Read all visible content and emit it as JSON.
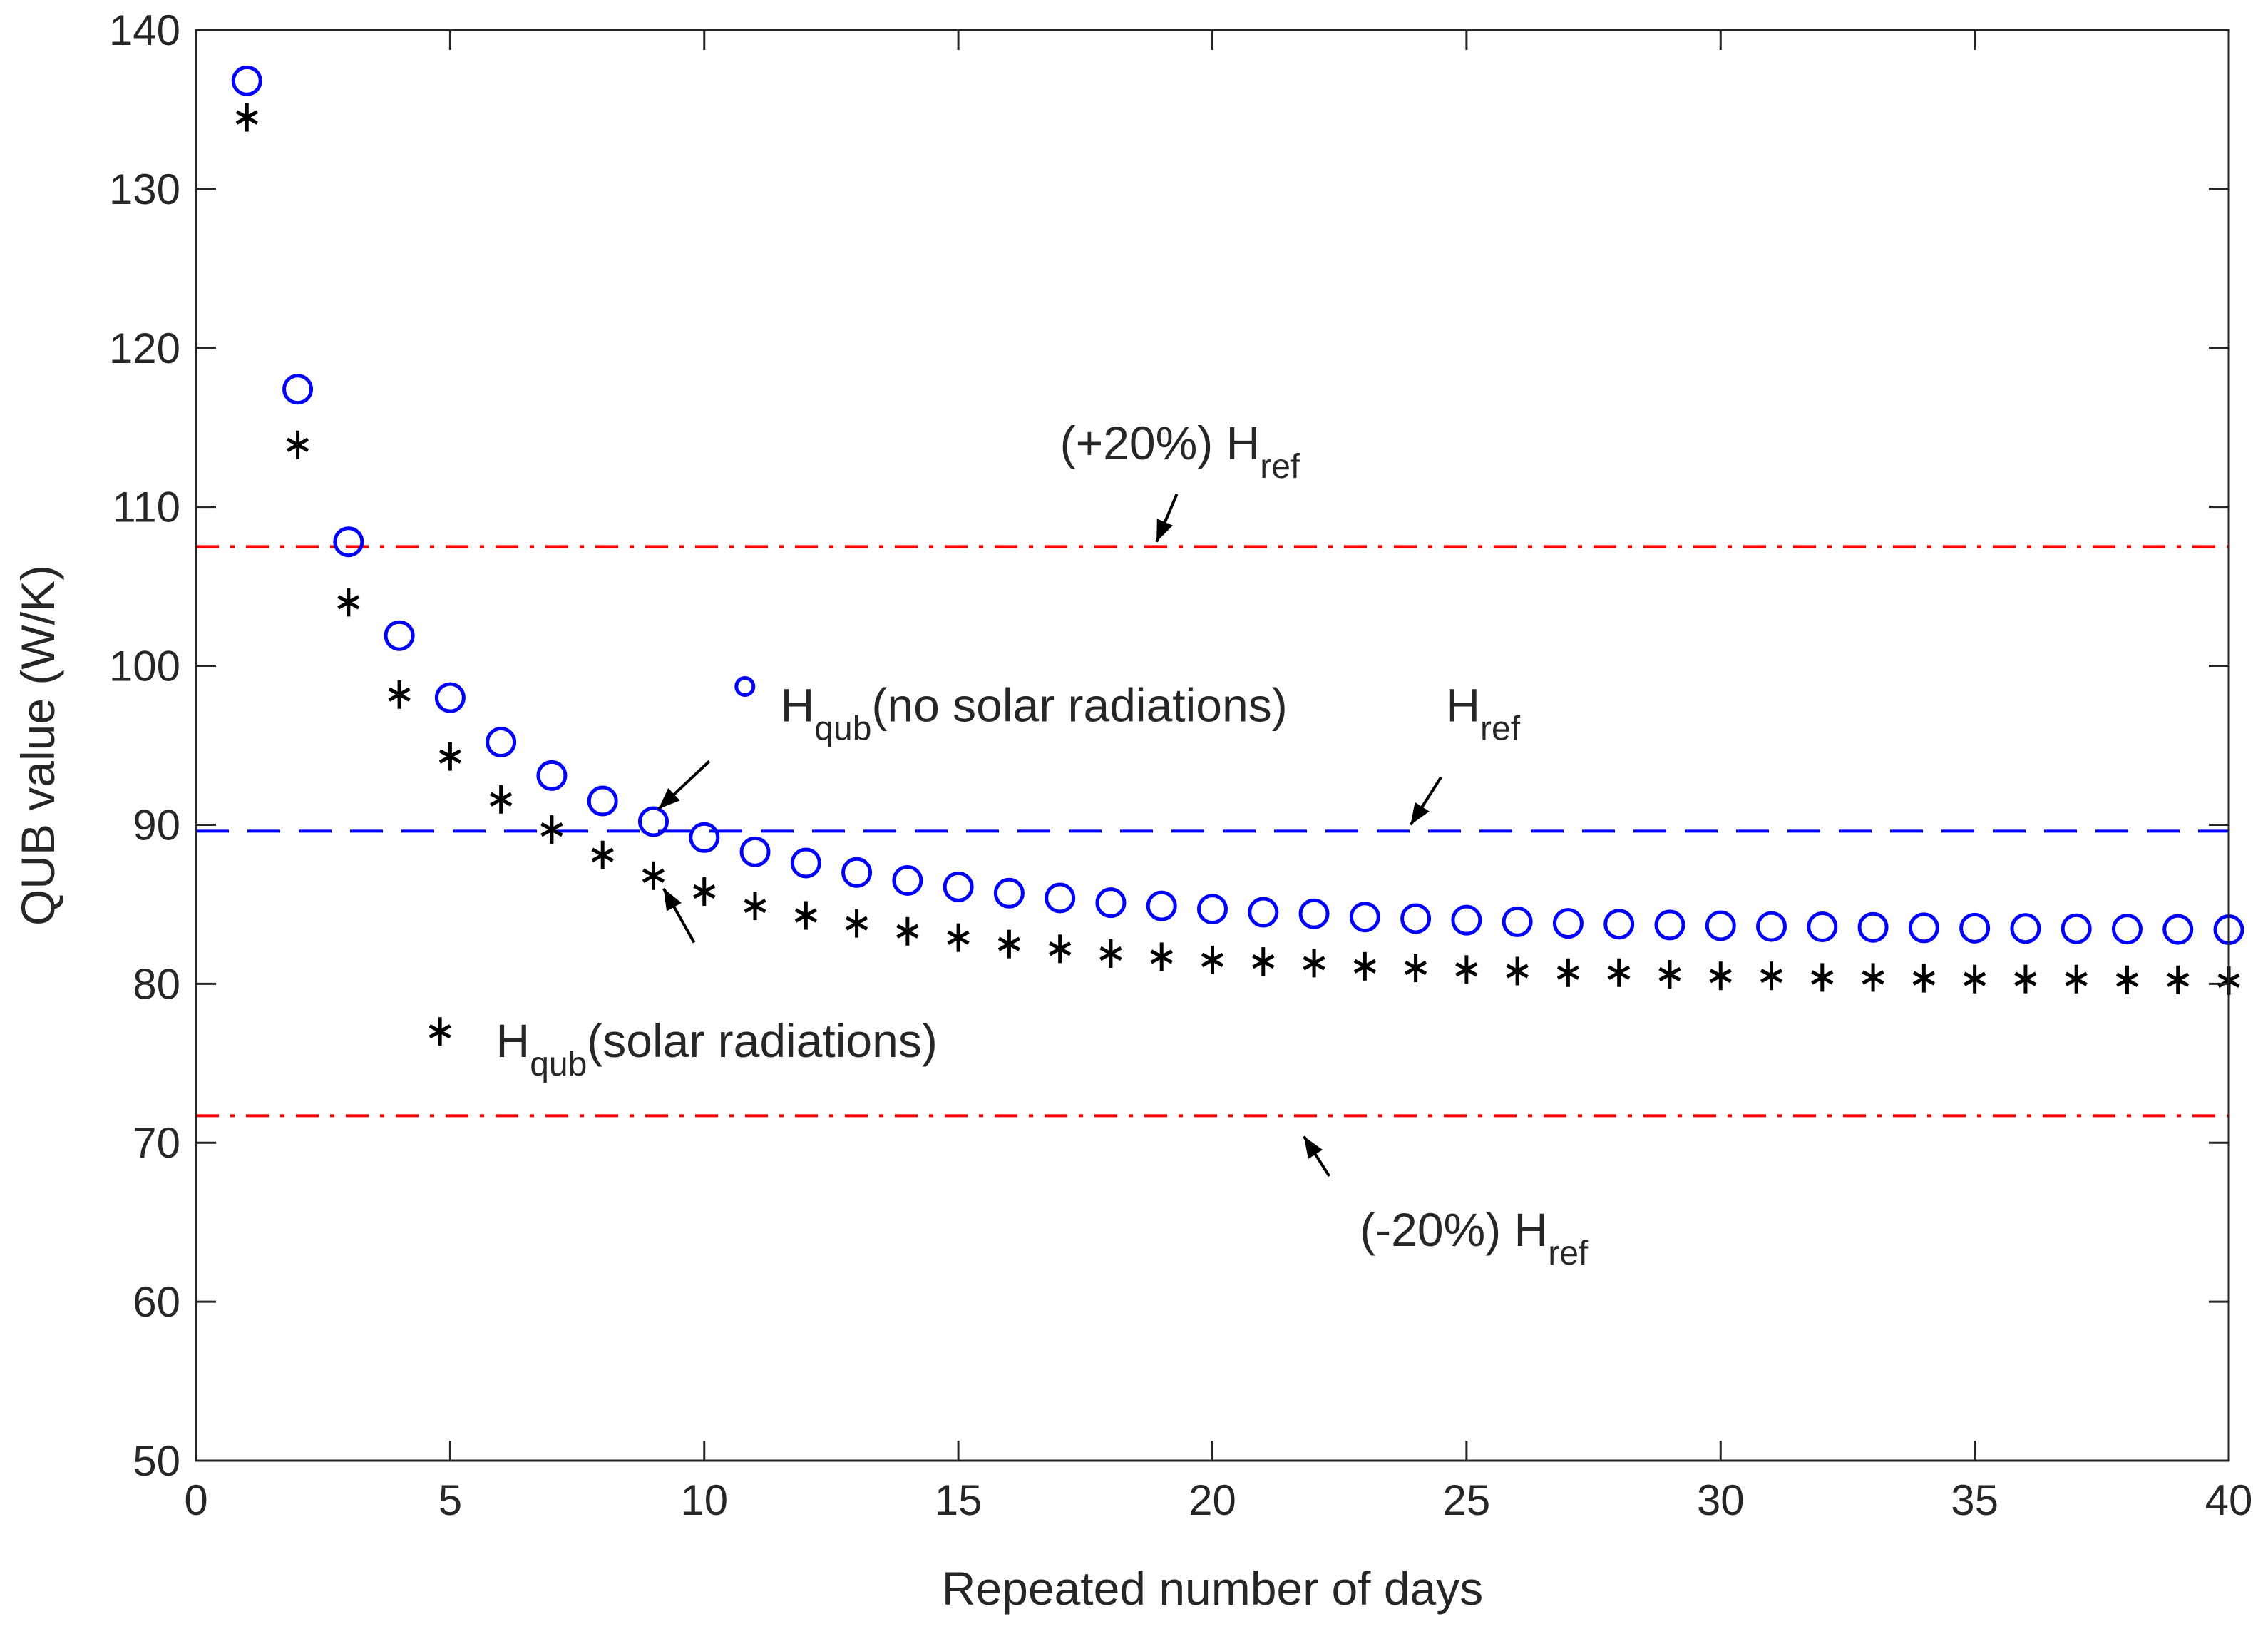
{
  "chart_data": {
    "type": "scatter",
    "title": "",
    "xlabel": "Repeated number of days",
    "ylabel": "QUB value (W/K)",
    "xlim": [
      0,
      40
    ],
    "ylim": [
      50,
      140
    ],
    "xticks": [
      0,
      5,
      10,
      15,
      20,
      25,
      30,
      35,
      40
    ],
    "yticks": [
      50,
      60,
      70,
      80,
      90,
      100,
      110,
      120,
      130,
      140
    ],
    "grid": false,
    "series": [
      {
        "name": "H_qub (no solar radiations)",
        "marker": "circle",
        "color": "#0000ff",
        "x": [
          1,
          2,
          3,
          4,
          5,
          6,
          7,
          8,
          9,
          10,
          11,
          12,
          13,
          14,
          15,
          16,
          17,
          18,
          19,
          20,
          21,
          22,
          23,
          24,
          25,
          26,
          27,
          28,
          29,
          30,
          31,
          32,
          33,
          34,
          35,
          36,
          37,
          38,
          39,
          40
        ],
        "values": [
          136.8,
          117.4,
          107.8,
          101.9,
          98.0,
          95.2,
          93.1,
          91.5,
          90.2,
          89.2,
          88.3,
          87.6,
          87.0,
          86.5,
          86.1,
          85.7,
          85.4,
          85.1,
          84.9,
          84.7,
          84.5,
          84.4,
          84.2,
          84.1,
          84.0,
          83.9,
          83.8,
          83.75,
          83.7,
          83.65,
          83.6,
          83.58,
          83.55,
          83.52,
          83.5,
          83.48,
          83.46,
          83.44,
          83.42,
          83.4
        ]
      },
      {
        "name": "H_qub (solar radiations)",
        "marker": "asterisk",
        "color": "#000000",
        "x": [
          1,
          2,
          3,
          4,
          5,
          6,
          7,
          8,
          9,
          10,
          11,
          12,
          13,
          14,
          15,
          16,
          17,
          18,
          19,
          20,
          21,
          22,
          23,
          24,
          25,
          26,
          27,
          28,
          29,
          30,
          31,
          32,
          33,
          34,
          35,
          36,
          37,
          38,
          39,
          40
        ],
        "values": [
          134.5,
          113.9,
          104.0,
          98.2,
          94.3,
          91.6,
          89.7,
          88.1,
          86.8,
          85.8,
          84.9,
          84.3,
          83.8,
          83.3,
          82.9,
          82.5,
          82.2,
          81.9,
          81.7,
          81.5,
          81.4,
          81.3,
          81.1,
          81.0,
          80.9,
          80.8,
          80.7,
          80.7,
          80.6,
          80.5,
          80.5,
          80.4,
          80.4,
          80.35,
          80.3,
          80.3,
          80.3,
          80.25,
          80.25,
          80.2
        ]
      }
    ],
    "reference_lines": [
      {
        "name": "(+20%) H_ref",
        "value": 107.5,
        "style": "dash-dot",
        "color": "#ff0000"
      },
      {
        "name": "H_ref",
        "value": 89.6,
        "style": "dashed",
        "color": "#0000ff"
      },
      {
        "name": "(-20%) H_ref",
        "value": 71.7,
        "style": "dash-dot",
        "color": "#ff0000"
      }
    ],
    "annotations": [
      {
        "main": "(+20%) H",
        "sub": "ref",
        "text_x": 17.0,
        "text_y": 113.0,
        "arrow_from": [
          19.3,
          110.8
        ],
        "arrow_to": [
          18.9,
          107.8
        ]
      },
      {
        "main": "H",
        "sub": "qub",
        "rest": "(no solar radiations)",
        "marker": "circle",
        "marker_x": 10.8,
        "marker_y": 98.7,
        "text_x": 11.5,
        "text_y": 96.5,
        "arrow_from": [
          10.1,
          94.0
        ],
        "arrow_to": [
          9.1,
          91.0
        ]
      },
      {
        "main": "H",
        "sub": "ref",
        "text_x": 24.6,
        "text_y": 96.5,
        "arrow_from": [
          24.5,
          93.0
        ],
        "arrow_to": [
          23.9,
          90.0
        ]
      },
      {
        "main": "H",
        "sub": "qub",
        "rest": "(solar radiations)",
        "marker": "asterisk",
        "marker_x": 4.8,
        "marker_y": 77.0,
        "text_x": 5.9,
        "text_y": 75.4,
        "arrow_from": [
          9.8,
          82.6
        ],
        "arrow_to": [
          9.2,
          86.0
        ]
      },
      {
        "main": "(-20%) H",
        "sub": "ref",
        "text_x": 22.9,
        "text_y": 63.5,
        "arrow_from": [
          22.3,
          67.9
        ],
        "arrow_to": [
          21.8,
          70.4
        ]
      }
    ]
  }
}
